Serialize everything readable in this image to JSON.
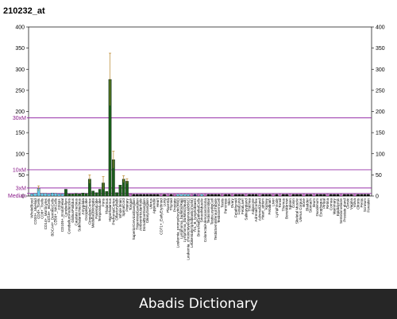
{
  "footer": {
    "text": "Abadis Dictionary"
  },
  "chart_data": {
    "type": "bar",
    "title": "210232_at",
    "ylim_left": [
      0,
      400
    ],
    "yticks_left": [
      0,
      50,
      100,
      150,
      200,
      250,
      300,
      350,
      400
    ],
    "ylim_right": [
      0,
      400
    ],
    "yticks_right": [
      0,
      50,
      100,
      150,
      200,
      250,
      300,
      350,
      400
    ],
    "reference_lines": [
      {
        "label": "30xM",
        "value": 185
      },
      {
        "label": "10xM",
        "value": 62
      },
      {
        "label": "3xM",
        "value": 19
      },
      {
        "label": "Median",
        "value": 6
      }
    ],
    "colors": {
      "dark_green": "#1a5e1a",
      "light_blue": "#66ccee",
      "black": "#111111",
      "purple_line": "#9933aa",
      "error_bar": "#b8862b"
    },
    "categories": [
      "WholeBlood",
      "CD33+_Myeloid",
      "CD4+_Tcells",
      "CD8+_Tcells",
      "CD14+_Monocytes",
      "CD19+_BCells",
      "BDCA4+_DentriticCells",
      "CD56+_NKCells",
      "CD34+",
      "CD105+_Endothelial",
      "Cerebellum",
      "CerebellumPeduncles",
      "GlobusPallidus",
      "Caudate nucleus",
      "SubthalamicNucleus",
      "Amygdala",
      "OccipitalLobe",
      "CingulateCortex",
      "MedullaOblongata",
      "ParietalLobe",
      "TemporalLobe",
      "Pons",
      "Thalamus",
      "Hypothalamus",
      "PrefrontalCortex",
      "OlfactoryBulb",
      "Whole Brain",
      "SpinalCord",
      "Pituitary",
      "Tongue",
      "SuperiorCervicalGanglion",
      "TrigeminalGanglion",
      "Atrioventricularnode",
      "DorsalRootGanglion",
      "CiliaryGanglion",
      "Uterus",
      "Appendix",
      "Heart",
      "CD71+_EarlyErythroid",
      "Lung",
      "Placenta",
      "Thyroid",
      "Prostate",
      "Leukemia_promyelocytic(hl60)",
      "Lymphoma_burkitts(Raji)",
      "Lymphoma_burkitts(Daudi)",
      "Leukemia_chronicMyelogenous(k562)",
      "Leukemialymphoblastic(molt4)",
      "721_B_lymphoblasts",
      "BronchialEpithelialCells",
      "SmoothMuscle",
      "ColorectalAdenocarcinoma",
      "TestisInterstitial",
      "TestisLeydigCell",
      "TestisSeminiferousTubule",
      "TestisGermCell",
      "Testis",
      "Pancreas",
      "Skin",
      "Ovary",
      "Fetalthyroid",
      "FetalLung",
      "FetalLiver",
      "Salivarygland",
      "Trachea",
      "Adipocyte",
      "AdrenalCortex",
      "AdrenalGland",
      "Heart_atrium",
      "Kidney",
      "Fetalbrain",
      "Liver",
      "Lymphnode",
      "Tonsil",
      "Thymus",
      "BoneMarrow",
      "Spleen",
      "Colon",
      "Skeletal Muscle",
      "Uterus Corpus",
      "Bone",
      "Bladder",
      "Stomach",
      "Ileum",
      "Duodenum",
      "Esophagus",
      "Pineal",
      "Retina",
      "Cornea",
      "Mammary",
      "Epididymis",
      "Seminal vesicle",
      "Prostate gland",
      "Cervix",
      "Vagina",
      "Vulva",
      "Clitoris",
      "Penis",
      "Scrotum",
      "Foreskin"
    ],
    "values": [
      5,
      6,
      18,
      6,
      6,
      5,
      7,
      6,
      5,
      5,
      16,
      5,
      5,
      6,
      5,
      7,
      6,
      40,
      12,
      8,
      16,
      31,
      11,
      276,
      86,
      8,
      26,
      40,
      35,
      5,
      4,
      4,
      4,
      4,
      4,
      4,
      4,
      4,
      4,
      4,
      4,
      4,
      4,
      4,
      4,
      4,
      4,
      4,
      4,
      4,
      4,
      4,
      4,
      4,
      4,
      4,
      4,
      4,
      4,
      4,
      4,
      4,
      4,
      4,
      4,
      4,
      4,
      4,
      4,
      4,
      4,
      4,
      4,
      4,
      4,
      4,
      4,
      4,
      4,
      4,
      4,
      4,
      4,
      4,
      4,
      4,
      4,
      4,
      4,
      4,
      4,
      4,
      4,
      4,
      4,
      4,
      4,
      4,
      4,
      4
    ],
    "errors": [
      0,
      0,
      6,
      0,
      0,
      0,
      0,
      0,
      0,
      0,
      0,
      0,
      0,
      0,
      0,
      0,
      0,
      10,
      0,
      0,
      0,
      15,
      0,
      62,
      20,
      0,
      0,
      8,
      6,
      0,
      0,
      0,
      0,
      0,
      0,
      0,
      0,
      0,
      0,
      0,
      0,
      0,
      0,
      0,
      0,
      0,
      0,
      0,
      0,
      0,
      0,
      0,
      0,
      0,
      0,
      0,
      0,
      0,
      0,
      0,
      0,
      0,
      0,
      0,
      0,
      0,
      0,
      0,
      0,
      0,
      0,
      0,
      0,
      0,
      0,
      0,
      0,
      0,
      0,
      0,
      0,
      0,
      0,
      0,
      0,
      0,
      0,
      0,
      0,
      0,
      0,
      0,
      0,
      0,
      0,
      0,
      0,
      0,
      0,
      0
    ],
    "bar_colors": [
      "#66ccee",
      "#66ccee",
      "#66ccee",
      "#66ccee",
      "#66ccee",
      "#66ccee",
      "#66ccee",
      "#66ccee",
      "#66ccee",
      "#66ccee",
      "#1a5e1a",
      "#1a5e1a",
      "#1a5e1a",
      "#1a5e1a",
      "#1a5e1a",
      "#1a5e1a",
      "#1a5e1a",
      "#1a5e1a",
      "#1a5e1a",
      "#1a5e1a",
      "#1a5e1a",
      "#1a5e1a",
      "#1a5e1a",
      "#1a5e1a",
      "#1a5e1a",
      "#1a5e1a",
      "#1a5e1a",
      "#1a5e1a",
      "#1a5e1a",
      "#cc66cc",
      "#111111",
      "#111111",
      "#111111",
      "#111111",
      "#111111",
      "#111111",
      "#111111",
      "#111111",
      "#cc66cc",
      "#111111",
      "#cc66cc",
      "#111111",
      "#cc66cc",
      "#66ccee",
      "#66ccee",
      "#66ccee",
      "#66ccee",
      "#cc66cc",
      "#222266",
      "#cc66cc",
      "#66ccee",
      "#cc66cc",
      "#111111",
      "#111111",
      "#111111",
      "#111111",
      "#cc66cc",
      "#111111",
      "#111111",
      "#cc66cc",
      "#111111",
      "#111111",
      "#111111",
      "#cc66cc",
      "#111111",
      "#111111",
      "#111111",
      "#cc66cc",
      "#111111",
      "#111111",
      "#111111",
      "#cc66cc",
      "#111111",
      "#cc66cc",
      "#111111",
      "#111111",
      "#cc66cc",
      "#111111",
      "#111111",
      "#111111",
      "#cc66cc",
      "#111111",
      "#111111",
      "#cc66cc",
      "#111111",
      "#111111",
      "#111111",
      "#cc66cc",
      "#111111",
      "#111111",
      "#111111",
      "#cc66cc",
      "#111111",
      "#111111",
      "#111111",
      "#cc66cc",
      "#111111",
      "#111111",
      "#111111",
      "#111111"
    ]
  }
}
